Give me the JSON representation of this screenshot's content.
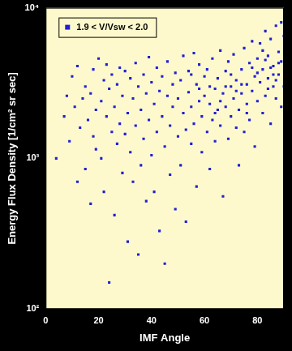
{
  "chart_data": {
    "type": "scatter",
    "x_label": "IMF Angle",
    "y_label": "Energy Flux Density [1/cm² sr sec]",
    "xlim": [
      0,
      90
    ],
    "xticks": [
      0,
      20,
      40,
      60,
      80
    ],
    "ylim": [
      100,
      10000
    ],
    "yticks": [
      {
        "value": 100,
        "label": "10²"
      },
      {
        "value": 1000,
        "label": "10³"
      },
      {
        "value": 10000,
        "label": "10⁴"
      }
    ],
    "log": "y",
    "grid": false,
    "legend": "upper left",
    "series": [
      {
        "name": "1.9 < V/Vsw < 2.0",
        "color": "#1f1fd6",
        "marker": "square",
        "x": [
          4,
          7,
          8,
          9,
          10,
          11,
          12,
          12,
          13,
          14,
          15,
          15,
          16,
          17,
          17,
          18,
          18,
          19,
          19,
          20,
          21,
          21,
          22,
          22,
          23,
          23,
          24,
          24,
          25,
          25,
          26,
          26,
          27,
          27,
          28,
          28,
          29,
          29,
          30,
          30,
          31,
          31,
          32,
          32,
          33,
          33,
          34,
          34,
          35,
          35,
          36,
          36,
          37,
          37,
          38,
          38,
          39,
          39,
          40,
          40,
          41,
          41,
          42,
          42,
          43,
          43,
          44,
          44,
          45,
          45,
          46,
          46,
          47,
          47,
          48,
          48,
          49,
          49,
          50,
          50,
          51,
          51,
          52,
          52,
          53,
          53,
          54,
          54,
          55,
          55,
          56,
          56,
          57,
          57,
          58,
          58,
          59,
          59,
          60,
          60,
          61,
          61,
          62,
          62,
          63,
          63,
          64,
          64,
          65,
          65,
          66,
          66,
          67,
          67,
          68,
          68,
          69,
          69,
          70,
          70,
          71,
          71,
          72,
          72,
          73,
          73,
          74,
          74,
          75,
          75,
          76,
          76,
          77,
          77,
          78,
          78,
          79,
          79,
          80,
          80,
          81,
          81,
          82,
          82,
          83,
          83,
          84,
          84,
          85,
          85,
          86,
          86,
          87,
          87,
          88,
          88,
          89,
          89,
          90,
          90,
          62,
          66,
          70,
          74,
          78,
          82,
          84,
          86,
          88,
          89,
          64,
          68,
          72,
          76,
          80,
          83,
          85,
          87,
          58,
          55
        ],
        "values": [
          1000,
          1900,
          2600,
          1300,
          3500,
          2200,
          700,
          4100,
          1600,
          2500,
          3000,
          850,
          1800,
          2700,
          500,
          3900,
          1400,
          2100,
          1150,
          4600,
          2400,
          1000,
          3300,
          600,
          1900,
          4200,
          150,
          2900,
          1500,
          3600,
          2200,
          420,
          3100,
          1250,
          4000,
          1700,
          2600,
          800,
          3800,
          1450,
          2000,
          280,
          3400,
          1100,
          2500,
          700,
          4300,
          1650,
          230,
          3000,
          2100,
          900,
          3600,
          1350,
          520,
          2700,
          4700,
          1800,
          1050,
          3200,
          2300,
          600,
          4000,
          1500,
          2800,
          330,
          1900,
          3500,
          1200,
          200,
          2600,
          4400,
          1650,
          780,
          3100,
          2200,
          460,
          3700,
          1400,
          2500,
          3300,
          900,
          2000,
          4800,
          1550,
          380,
          2750,
          3800,
          1250,
          2200,
          5000,
          1700,
          3100,
          650,
          2400,
          4200,
          1900,
          1100,
          3500,
          2600,
          1500,
          3900,
          2300,
          850,
          4600,
          1800,
          2900,
          1300,
          3400,
          2100,
          5200,
          1650,
          2700,
          560,
          3800,
          2200,
          4400,
          1350,
          3000,
          1900,
          2500,
          4900,
          1600,
          3300,
          2100,
          900,
          3900,
          2700,
          5400,
          1500,
          3100,
          2300,
          4300,
          1800,
          2800,
          6000,
          3500,
          1200,
          2400,
          4600,
          3200,
          5800,
          2000,
          3900,
          7000,
          2600,
          3400,
          4800,
          1700,
          6200,
          3000,
          4100,
          2500,
          7600,
          3600,
          5100,
          2200,
          4400,
          6500,
          3000,
          3000,
          2400,
          3600,
          3100,
          4000,
          5200,
          2900,
          3600,
          4300,
          8000,
          2000,
          3000,
          2800,
          2000,
          3700,
          4500,
          4000,
          3300,
          2900,
          3600
        ]
      }
    ]
  }
}
